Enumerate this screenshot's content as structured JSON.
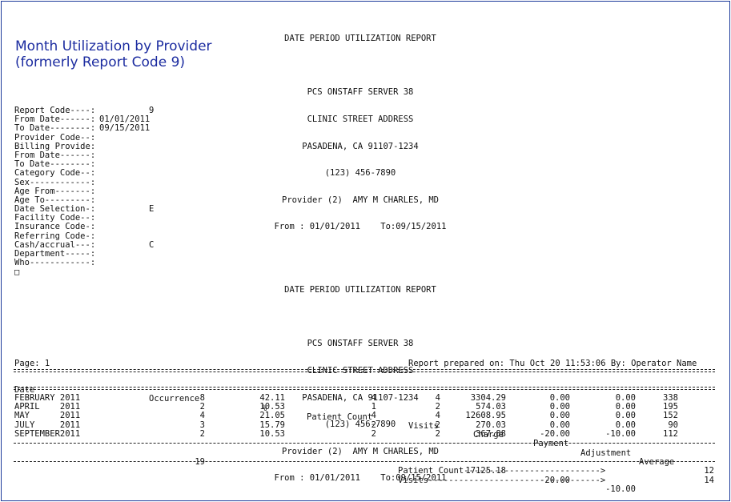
{
  "caption": {
    "line1": "Month Utilization by Provider",
    "line2": "(formerly Report Code 9)"
  },
  "header1": {
    "title": "DATE PERIOD UTILIZATION REPORT",
    "server": "PCS ONSTAFF SERVER 38",
    "address": "CLINIC STREET ADDRESS",
    "city": "PASADENA, CA 91107-1234",
    "phone": "(123) 456-7890",
    "provider": "Provider (2)  AMY M CHARLES, MD",
    "period": "From : 01/01/2011    To:09/15/2011"
  },
  "params": [
    {
      "label": "Report Code----:",
      "value": "9"
    },
    {
      "label": "From Date------:",
      "value": "01/01/2011"
    },
    {
      "label": "To Date--------:",
      "value": "09/15/2011"
    },
    {
      "label": "Provider Code--:",
      "value": ""
    },
    {
      "label": "Billing Provide:",
      "value": ""
    },
    {
      "label": "From Date------:",
      "value": ""
    },
    {
      "label": "To Date--------:",
      "value": ""
    },
    {
      "label": "Category Code--:",
      "value": ""
    },
    {
      "label": "Sex------------:",
      "value": ""
    },
    {
      "label": "Age From-------:",
      "value": ""
    },
    {
      "label": "Age To---------:",
      "value": ""
    },
    {
      "label": "Date Selection-:",
      "value": "E"
    },
    {
      "label": "Facility Code--:",
      "value": ""
    },
    {
      "label": "Insurance Code-:",
      "value": ""
    },
    {
      "label": "Referring Code-:",
      "value": ""
    },
    {
      "label": "Cash/accrual---:",
      "value": "C"
    },
    {
      "label": "Department-----:",
      "value": ""
    },
    {
      "label": "Who------------:",
      "value": ""
    }
  ],
  "box_glyph": "□",
  "header2": {
    "title": "DATE PERIOD UTILIZATION REPORT",
    "server": "PCS ONSTAFF SERVER 38",
    "address": "CLINIC STREET ADDRESS",
    "city": "PASADENA, CA 91107-1234",
    "phone": "(123) 456-7890",
    "provider": "Provider (2)  AMY M CHARLES, MD",
    "period": "From : 01/01/2011    To:09/15/2011"
  },
  "page_line": {
    "page": "Page: 1",
    "prepared": "Report prepared on: Thu Oct 20 11:53:06 By: Operator Name"
  },
  "table": {
    "headers": [
      "Date",
      "Occurrence",
      "%",
      "Patient Count",
      "Visits",
      "Charge",
      "Payment",
      "Adjustment",
      "Average"
    ],
    "rows": [
      [
        "FEBRUARY 2011",
        "8",
        "42.11",
        "4",
        "4",
        "3304.29",
        "0.00",
        "0.00",
        "338"
      ],
      [
        "APRIL    2011",
        "2",
        "10.53",
        "1",
        "2",
        "574.03",
        "0.00",
        "0.00",
        "195"
      ],
      [
        "MAY      2011",
        "4",
        "21.05",
        "4",
        "4",
        "12608.95",
        "0.00",
        "0.00",
        "152"
      ],
      [
        "JULY     2011",
        "3",
        "15.79",
        "2",
        "2",
        "270.03",
        "0.00",
        "0.00",
        "90"
      ],
      [
        "SEPTEMBER2011",
        "2",
        "10.53",
        "2",
        "2",
        "367.88",
        "-20.00",
        "-10.00",
        "112"
      ]
    ],
    "totals": {
      "occurrence": "19",
      "charge": "17125.18",
      "payment": "-20.00",
      "adjustment": "-10.00"
    }
  },
  "summary": [
    {
      "label": "Patient Count--------------------------->",
      "value": "12"
    },
    {
      "label": "Visits---------------------------------->",
      "value": "14"
    }
  ]
}
